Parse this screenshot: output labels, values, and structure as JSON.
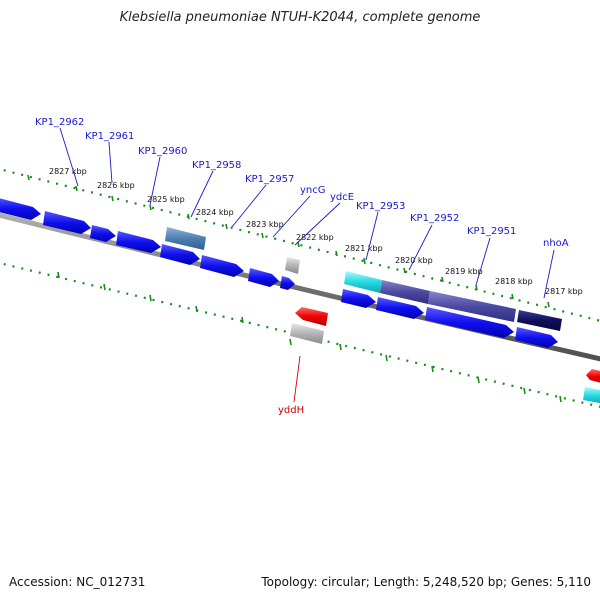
{
  "title": "Klebsiella pneumoniae NTUH-K2044, complete genome",
  "accession": "Accession: NC_012731",
  "summary": "Topology: circular; Length: 5,248,520 bp; Genes: 5,110",
  "colors": {
    "gene_label": "#1a1acc",
    "ext_label": "#cc0000",
    "tick_green": "#1a8c1a",
    "backbone": "#666666"
  },
  "ticks": [
    "2827 kbp",
    "2826 kbp",
    "2825 kbp",
    "2824 kbp",
    "2823 kbp",
    "2822 kbp",
    "2821 kbp",
    "2820 kbp",
    "2819 kbp",
    "2818 kbp",
    "2817 kbp"
  ],
  "gene_labels": [
    "KP1_2962",
    "KP1_2961",
    "KP1_2960",
    "KP1_2958",
    "KP1_2957",
    "yncG",
    "ydcE",
    "KP1_2953",
    "KP1_2952",
    "KP1_2951",
    "nhoA"
  ],
  "ext_labels": [
    "yddH"
  ]
}
